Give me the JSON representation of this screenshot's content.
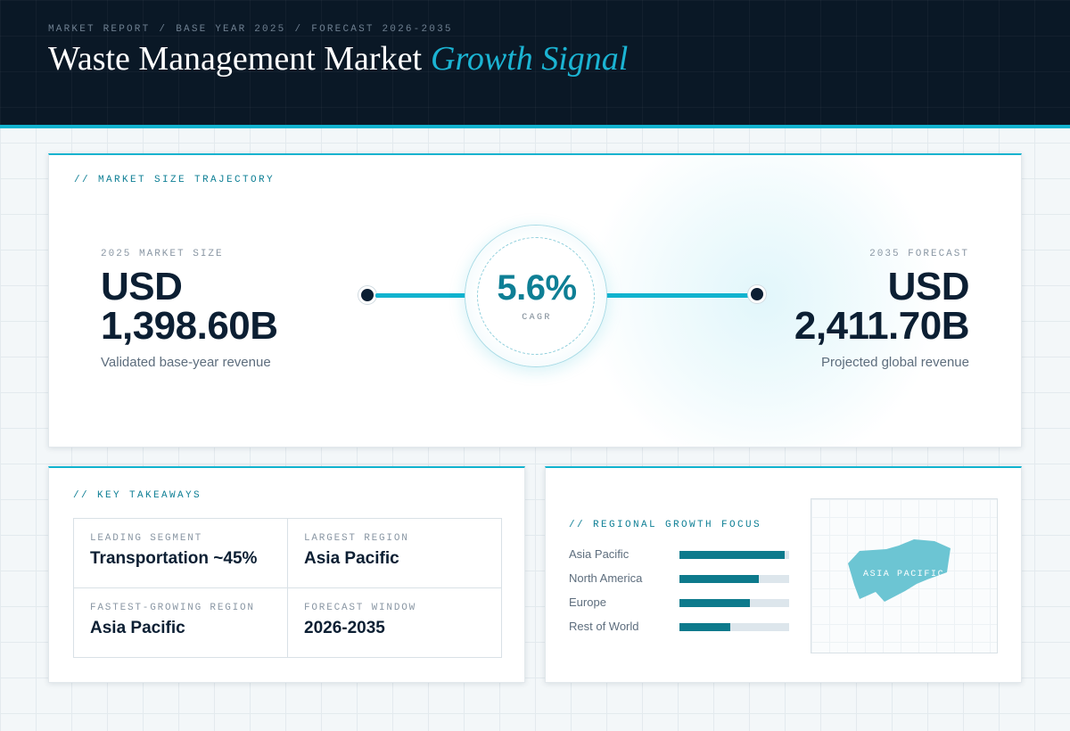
{
  "header": {
    "breadcrumbs": [
      "MARKET REPORT",
      "BASE YEAR 2025",
      "FORECAST 2026-2035"
    ],
    "separator": "/",
    "title_main": "Waste Management Market",
    "title_accent": "Growth Signal"
  },
  "trajectory": {
    "label": "// MARKET SIZE TRAJECTORY",
    "start": {
      "caption": "2025 MARKET SIZE",
      "currency": "USD",
      "value": "1,398.60B",
      "subtitle": "Validated base-year revenue"
    },
    "end": {
      "caption": "2035 FORECAST",
      "currency": "USD",
      "value": "2,411.70B",
      "subtitle": "Projected global revenue"
    },
    "cagr": {
      "value": "5.6%",
      "caption": "CAGR"
    }
  },
  "takeaways": {
    "label": "// KEY TAKEAWAYS",
    "items": [
      {
        "caption": "LEADING SEGMENT",
        "value": "Transportation ~45%"
      },
      {
        "caption": "LARGEST REGION",
        "value": "Asia Pacific"
      },
      {
        "caption": "FASTEST-GROWING REGION",
        "value": "Asia Pacific"
      },
      {
        "caption": "FORECAST WINDOW",
        "value": "2026-2035"
      }
    ]
  },
  "regional": {
    "label": "// REGIONAL GROWTH FOCUS",
    "rows": [
      {
        "name": "Asia Pacific",
        "level": 0.96
      },
      {
        "name": "North America",
        "level": 0.72
      },
      {
        "name": "Europe",
        "level": 0.64
      },
      {
        "name": "Rest of World",
        "level": 0.46
      }
    ],
    "map_label": "ASIA PACIFIC",
    "map_color": "#6cc5d3"
  },
  "colors": {
    "accent": "#11b3cf",
    "accent_dark": "#0d7a8c",
    "navy": "#0c1f33",
    "header_bg": "#0a1826"
  }
}
